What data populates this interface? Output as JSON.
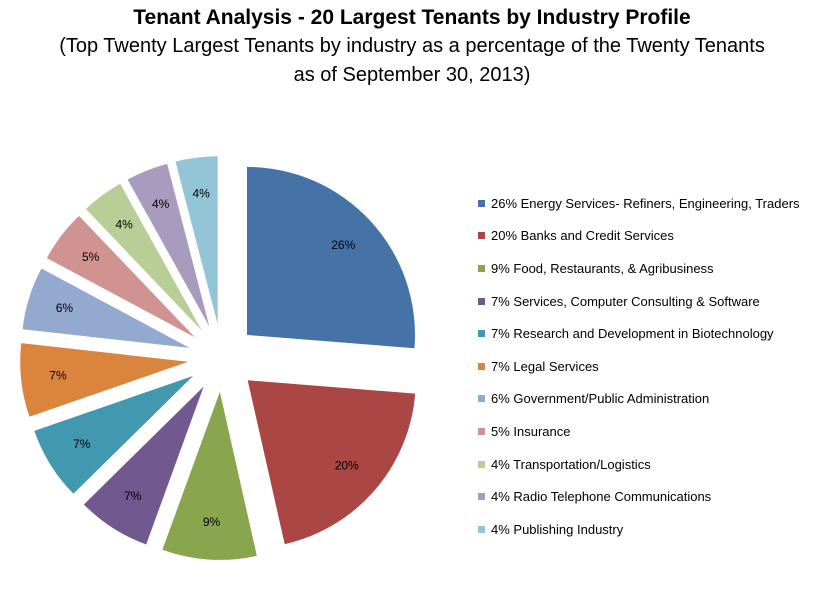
{
  "title": "Tenant Analysis - 20 Largest Tenants by Industry Profile",
  "subtitle": "(Top Twenty Largest Tenants by industry as a percentage of the Twenty Tenants as of September 30, 2013)",
  "chart_data": {
    "type": "pie",
    "title": "Tenant Analysis - 20 Largest Tenants by Industry Profile",
    "subtitle": "(Top Twenty Largest Tenants by industry as a percentage of the Twenty Tenants as of September 30, 2013)",
    "legend_position": "right",
    "exploded": true,
    "slices": [
      {
        "label": "Energy Services- Refiners, Engineering, Traders",
        "value": 26,
        "value_label": "26%",
        "legend_text": "26%  Energy Services- Refiners, Engineering, Traders",
        "color": "#4572A7"
      },
      {
        "label": "Banks and Credit Services",
        "value": 20,
        "value_label": "20%",
        "legend_text": "20%  Banks and Credit Services",
        "color": "#AA4643"
      },
      {
        "label": "Food, Restaurants, & Agribusiness",
        "value": 9,
        "value_label": "9%",
        "legend_text": "9%  Food, Restaurants, & Agribusiness",
        "color": "#89A54E"
      },
      {
        "label": "Services, Computer Consulting & Software",
        "value": 7,
        "value_label": "7%",
        "legend_text": "7%  Services, Computer Consulting & Software",
        "color": "#71588F"
      },
      {
        "label": "Research and Development in Biotechnology",
        "value": 7,
        "value_label": "7%",
        "legend_text": "7%  Research and Development in Biotechnology",
        "color": "#4198AF"
      },
      {
        "label": "Legal Services",
        "value": 7,
        "value_label": "7%",
        "legend_text": "7%  Legal Services",
        "color": "#DB843D"
      },
      {
        "label": "Government/Public Administration",
        "value": 6,
        "value_label": "6%",
        "legend_text": "6% Government/Public Administration",
        "color": "#93A9CF"
      },
      {
        "label": "Insurance",
        "value": 5,
        "value_label": "5%",
        "legend_text": "5%  Insurance",
        "color": "#D19392"
      },
      {
        "label": "Transportation/Logistics",
        "value": 4,
        "value_label": "4%",
        "legend_text": "4%  Transportation/Logistics",
        "color": "#B9CD96"
      },
      {
        "label": "Radio Telephone Communications",
        "value": 4,
        "value_label": "4%",
        "legend_text": "4%  Radio Telephone Communications",
        "color": "#A99BBD"
      },
      {
        "label": "Publishing Industry",
        "value": 4,
        "value_label": "4%",
        "legend_text": "4%  Publishing Industry",
        "color": "#92C5D6"
      }
    ]
  }
}
